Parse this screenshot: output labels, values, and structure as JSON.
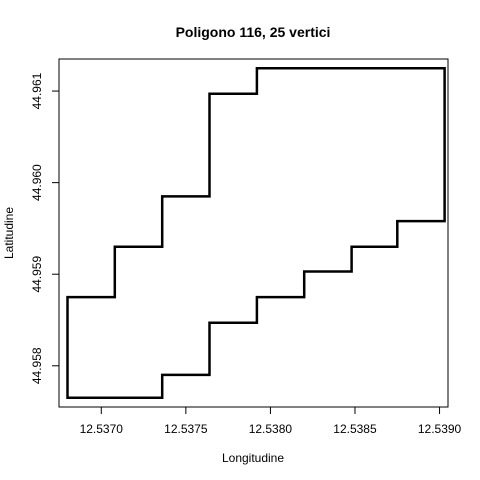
{
  "chart_data": {
    "type": "line",
    "title": "Poligono 116, 25 vertici",
    "xlabel": "Longitudine",
    "ylabel": "Latitudine",
    "xlim": [
      12.53675,
      12.53905
    ],
    "ylim": [
      44.95755,
      44.96135
    ],
    "xticks": [
      12.537,
      12.5375,
      12.538,
      12.5385,
      12.539
    ],
    "xtick_labels": [
      "12.5370",
      "12.5375",
      "12.5380",
      "12.5385",
      "12.5390"
    ],
    "yticks": [
      44.958,
      44.959,
      44.96,
      44.961
    ],
    "ytick_labels": [
      "44.958",
      "44.959",
      "44.960",
      "44.961"
    ],
    "grid": false,
    "line_color": "#000000",
    "series": [
      {
        "closed": true,
        "points": [
          [
            12.5368,
            44.95765
          ],
          [
            12.53736,
            44.95765
          ],
          [
            12.53736,
            44.9579
          ],
          [
            12.53764,
            44.9579
          ],
          [
            12.53764,
            44.95847
          ],
          [
            12.53792,
            44.95847
          ],
          [
            12.53792,
            44.95875
          ],
          [
            12.5382,
            44.95875
          ],
          [
            12.5382,
            44.95903
          ],
          [
            12.53848,
            44.95903
          ],
          [
            12.53848,
            44.9593
          ],
          [
            12.53875,
            44.9593
          ],
          [
            12.53875,
            44.95958
          ],
          [
            12.53903,
            44.95958
          ],
          [
            12.53903,
            44.96125
          ],
          [
            12.53792,
            44.96125
          ],
          [
            12.53792,
            44.96097
          ],
          [
            12.53764,
            44.96097
          ],
          [
            12.53764,
            44.95985
          ],
          [
            12.53736,
            44.95985
          ],
          [
            12.53736,
            44.9593
          ],
          [
            12.53708,
            44.9593
          ],
          [
            12.53708,
            44.95875
          ],
          [
            12.5368,
            44.95875
          ],
          [
            12.5368,
            44.95765
          ]
        ]
      }
    ]
  }
}
